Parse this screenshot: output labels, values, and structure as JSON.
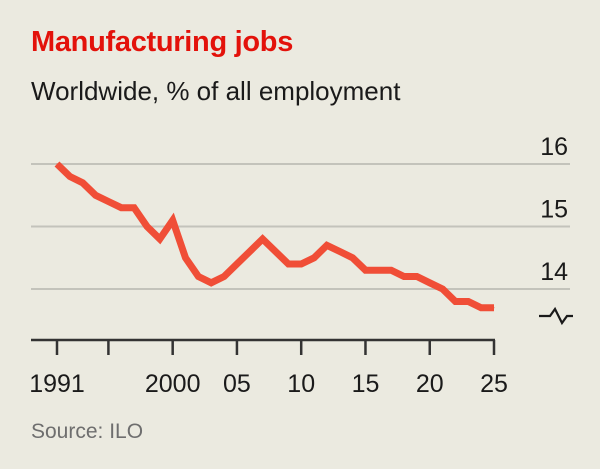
{
  "chart_data": {
    "type": "line",
    "title": "Manufacturing jobs",
    "subtitle": "Worldwide, % of all employment",
    "source": "Source: ILO",
    "xlabel": "",
    "ylabel": "",
    "x": [
      1991,
      1992,
      1993,
      1994,
      1995,
      1996,
      1997,
      1998,
      1999,
      2000,
      2001,
      2002,
      2003,
      2004,
      2005,
      2006,
      2007,
      2008,
      2009,
      2010,
      2011,
      2012,
      2013,
      2014,
      2015,
      2016,
      2017,
      2018,
      2019,
      2020,
      2021,
      2022,
      2023,
      2024,
      2025
    ],
    "series": [
      {
        "values": [
          16.0,
          15.8,
          15.7,
          15.5,
          15.4,
          15.3,
          15.3,
          15.0,
          14.8,
          15.1,
          14.5,
          14.2,
          14.1,
          14.2,
          14.4,
          14.6,
          14.8,
          14.6,
          14.4,
          14.4,
          14.5,
          14.7,
          14.6,
          14.5,
          14.3,
          14.3,
          14.3,
          14.2,
          14.2,
          14.1,
          14.0,
          13.8,
          13.8,
          13.7,
          13.7
        ],
        "color": "#f04e37"
      }
    ],
    "ylim": [
      13.2,
      16
    ],
    "xlim": [
      1991,
      2025
    ],
    "y_ticks": [
      {
        "value": 16,
        "label": "16"
      },
      {
        "value": 15,
        "label": "15"
      },
      {
        "value": 14,
        "label": "14"
      }
    ],
    "x_ticks": [
      1991,
      1995,
      2000,
      2005,
      2010,
      2015,
      2020,
      2025
    ],
    "x_tick_labels": [
      {
        "value": 1991,
        "label": "1991"
      },
      {
        "value": 2000,
        "label": "2000"
      },
      {
        "value": 2005,
        "label": "05"
      },
      {
        "value": 2010,
        "label": "10"
      },
      {
        "value": 2015,
        "label": "15"
      },
      {
        "value": 2020,
        "label": "20"
      },
      {
        "value": 2025,
        "label": "25"
      }
    ],
    "y_axis_break": true,
    "grid": true,
    "colors": {
      "title": "#e3120b",
      "line": "#f04e37",
      "background": "#ebeae0"
    }
  }
}
